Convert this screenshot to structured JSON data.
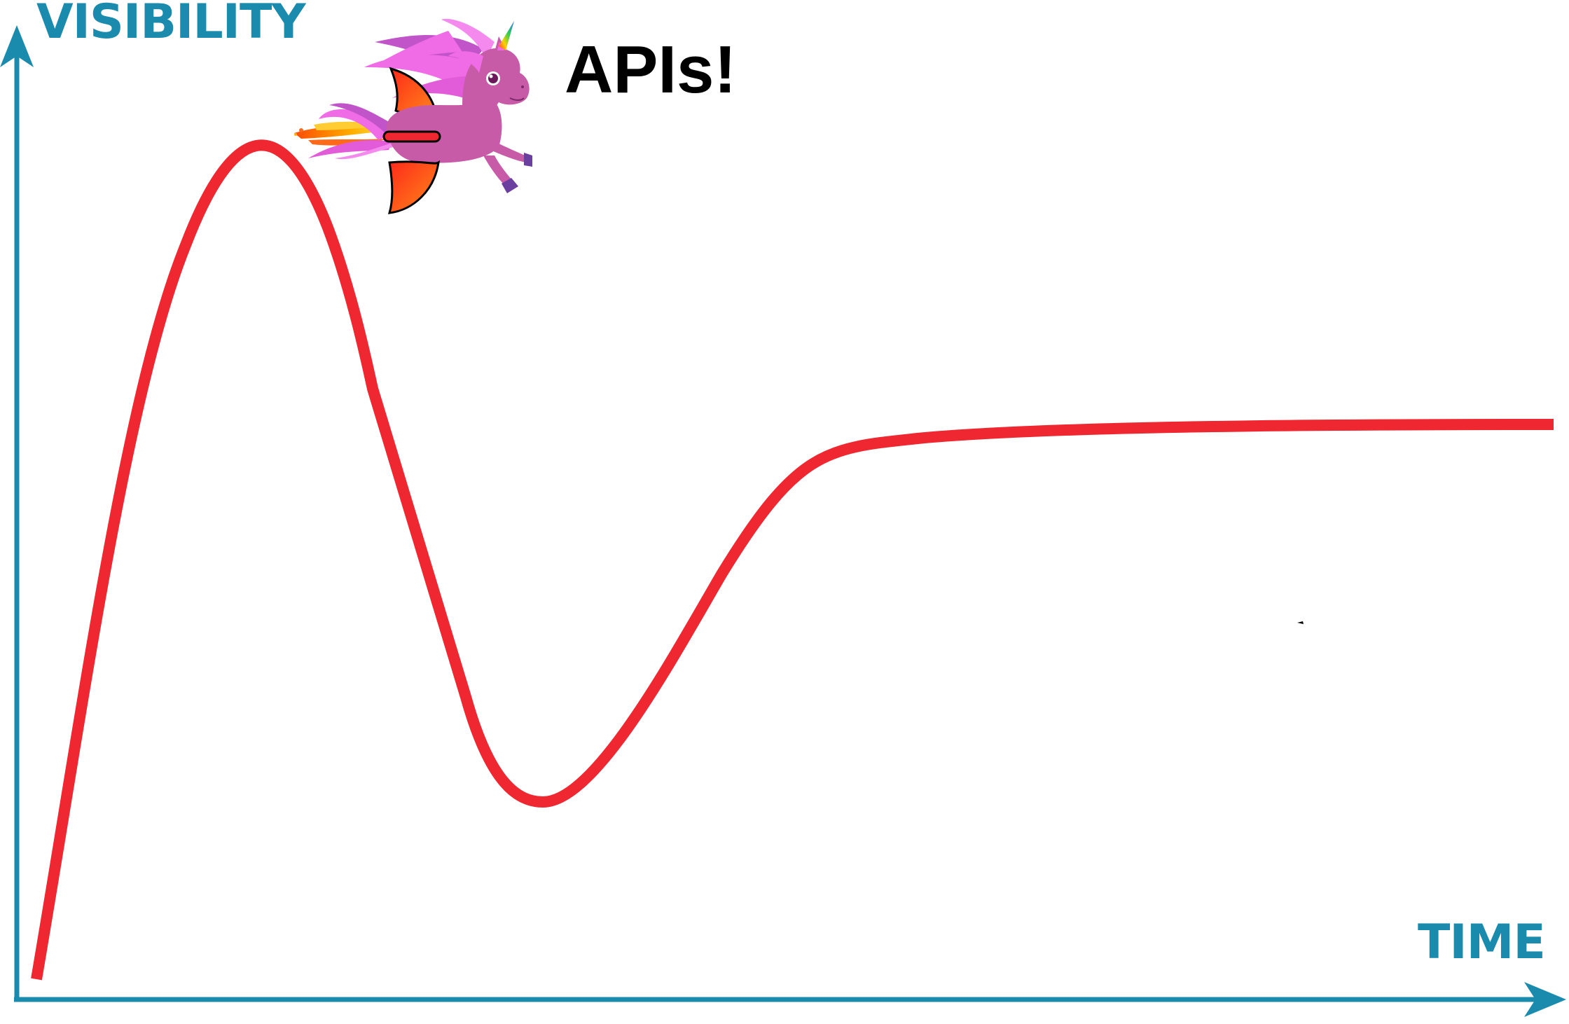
{
  "diagram": {
    "y_axis_label": "VISIBILITY",
    "x_axis_label": "TIME",
    "callout": "APIs!",
    "mascot_icon": "flying-unicorn-icon",
    "colors": {
      "axis": "#1a8aad",
      "curve": "#ee2730",
      "callout_text": "#000000",
      "unicorn_body": "#c85ba8",
      "unicorn_mane": "#f06be6",
      "wing": "#ff3a20"
    }
  }
}
